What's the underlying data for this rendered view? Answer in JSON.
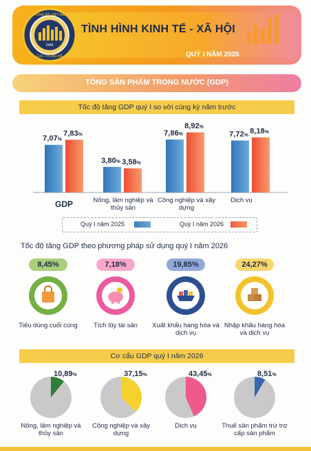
{
  "header": {
    "title": "TÌNH HÌNH KINH TẾ - XÃ HỘI",
    "subtitle": "QUÝ I NĂM 2026",
    "emblem_text_top": "THỐNG KÊ VIỆT NAM",
    "emblem_text_bottom": "CỤC THỐNG KÊ",
    "emblem_year": "1946"
  },
  "gdp_banner": "TỔNG SẢN PHẨM TRONG NƯỚC (GDP)",
  "chart_data": [
    {
      "type": "bar",
      "title": "Tốc độ tăng GDP quý I so với cùng kỳ năm trước",
      "categories": [
        "GDP",
        "Nông, lâm nghiệp và thủy sản",
        "Công nghiệp và xây dựng",
        "Dịch vụ"
      ],
      "series": [
        {
          "name": "Quý I năm 2025",
          "values": [
            7.07,
            3.8,
            7.86,
            7.72
          ]
        },
        {
          "name": "Quý I năm 2026",
          "values": [
            7.83,
            3.58,
            8.92,
            8.18
          ]
        }
      ],
      "value_labels": [
        [
          "7,07",
          "3,80",
          "7,86",
          "7,72"
        ],
        [
          "7,83",
          "3,58",
          "8,92",
          "8,18"
        ]
      ],
      "unit": "%",
      "ylim": [
        0,
        10
      ],
      "legend_position": "bottom",
      "colors": {
        "q2025": "#4f86c6",
        "q2026": "#f15a40"
      }
    },
    {
      "type": "bar",
      "title": "Tốc độ tăng GDP theo phương pháp sử dụng quý I năm 2026",
      "categories": [
        "Tiêu dùng cuối cùng",
        "Tích lũy tài sản",
        "Xuất khẩu hàng hóa và dịch vụ",
        "Nhập khẩu hàng hóa và dịch vụ"
      ],
      "values": [
        8.45,
        7.18,
        19.85,
        24.27
      ],
      "value_labels": [
        "8,45%",
        "7,18%",
        "19,85%",
        "24,27%"
      ],
      "icons": [
        "shopping-bag-icon",
        "piggy-bank-icon",
        "cargo-ship-icon",
        "boxes-icon"
      ],
      "colors": [
        "#72b043",
        "#ec5aa0",
        "#2c4f8f",
        "#f3c22b"
      ]
    },
    {
      "type": "pie",
      "title": "Cơ cấu GDP quý I năm 2026",
      "slices": [
        {
          "label": "Nông, lâm nghiệp và thủy sản",
          "value": 10.89,
          "value_label": "10,89",
          "color": "#2f7d3b"
        },
        {
          "label": "Công nghiệp và xây dựng",
          "value": 37.15,
          "value_label": "37,15",
          "color": "#f5d12e"
        },
        {
          "label": "Dịch vụ",
          "value": 43.45,
          "value_label": "43,45",
          "color": "#ee5a8c"
        },
        {
          "label": "Thuế sản phẩm trừ trợ cấp sản phẩm",
          "value": 8.51,
          "value_label": "8,51",
          "color": "#3a67ad"
        }
      ],
      "unit": "%",
      "rest_color": "#c9c9c9"
    }
  ]
}
